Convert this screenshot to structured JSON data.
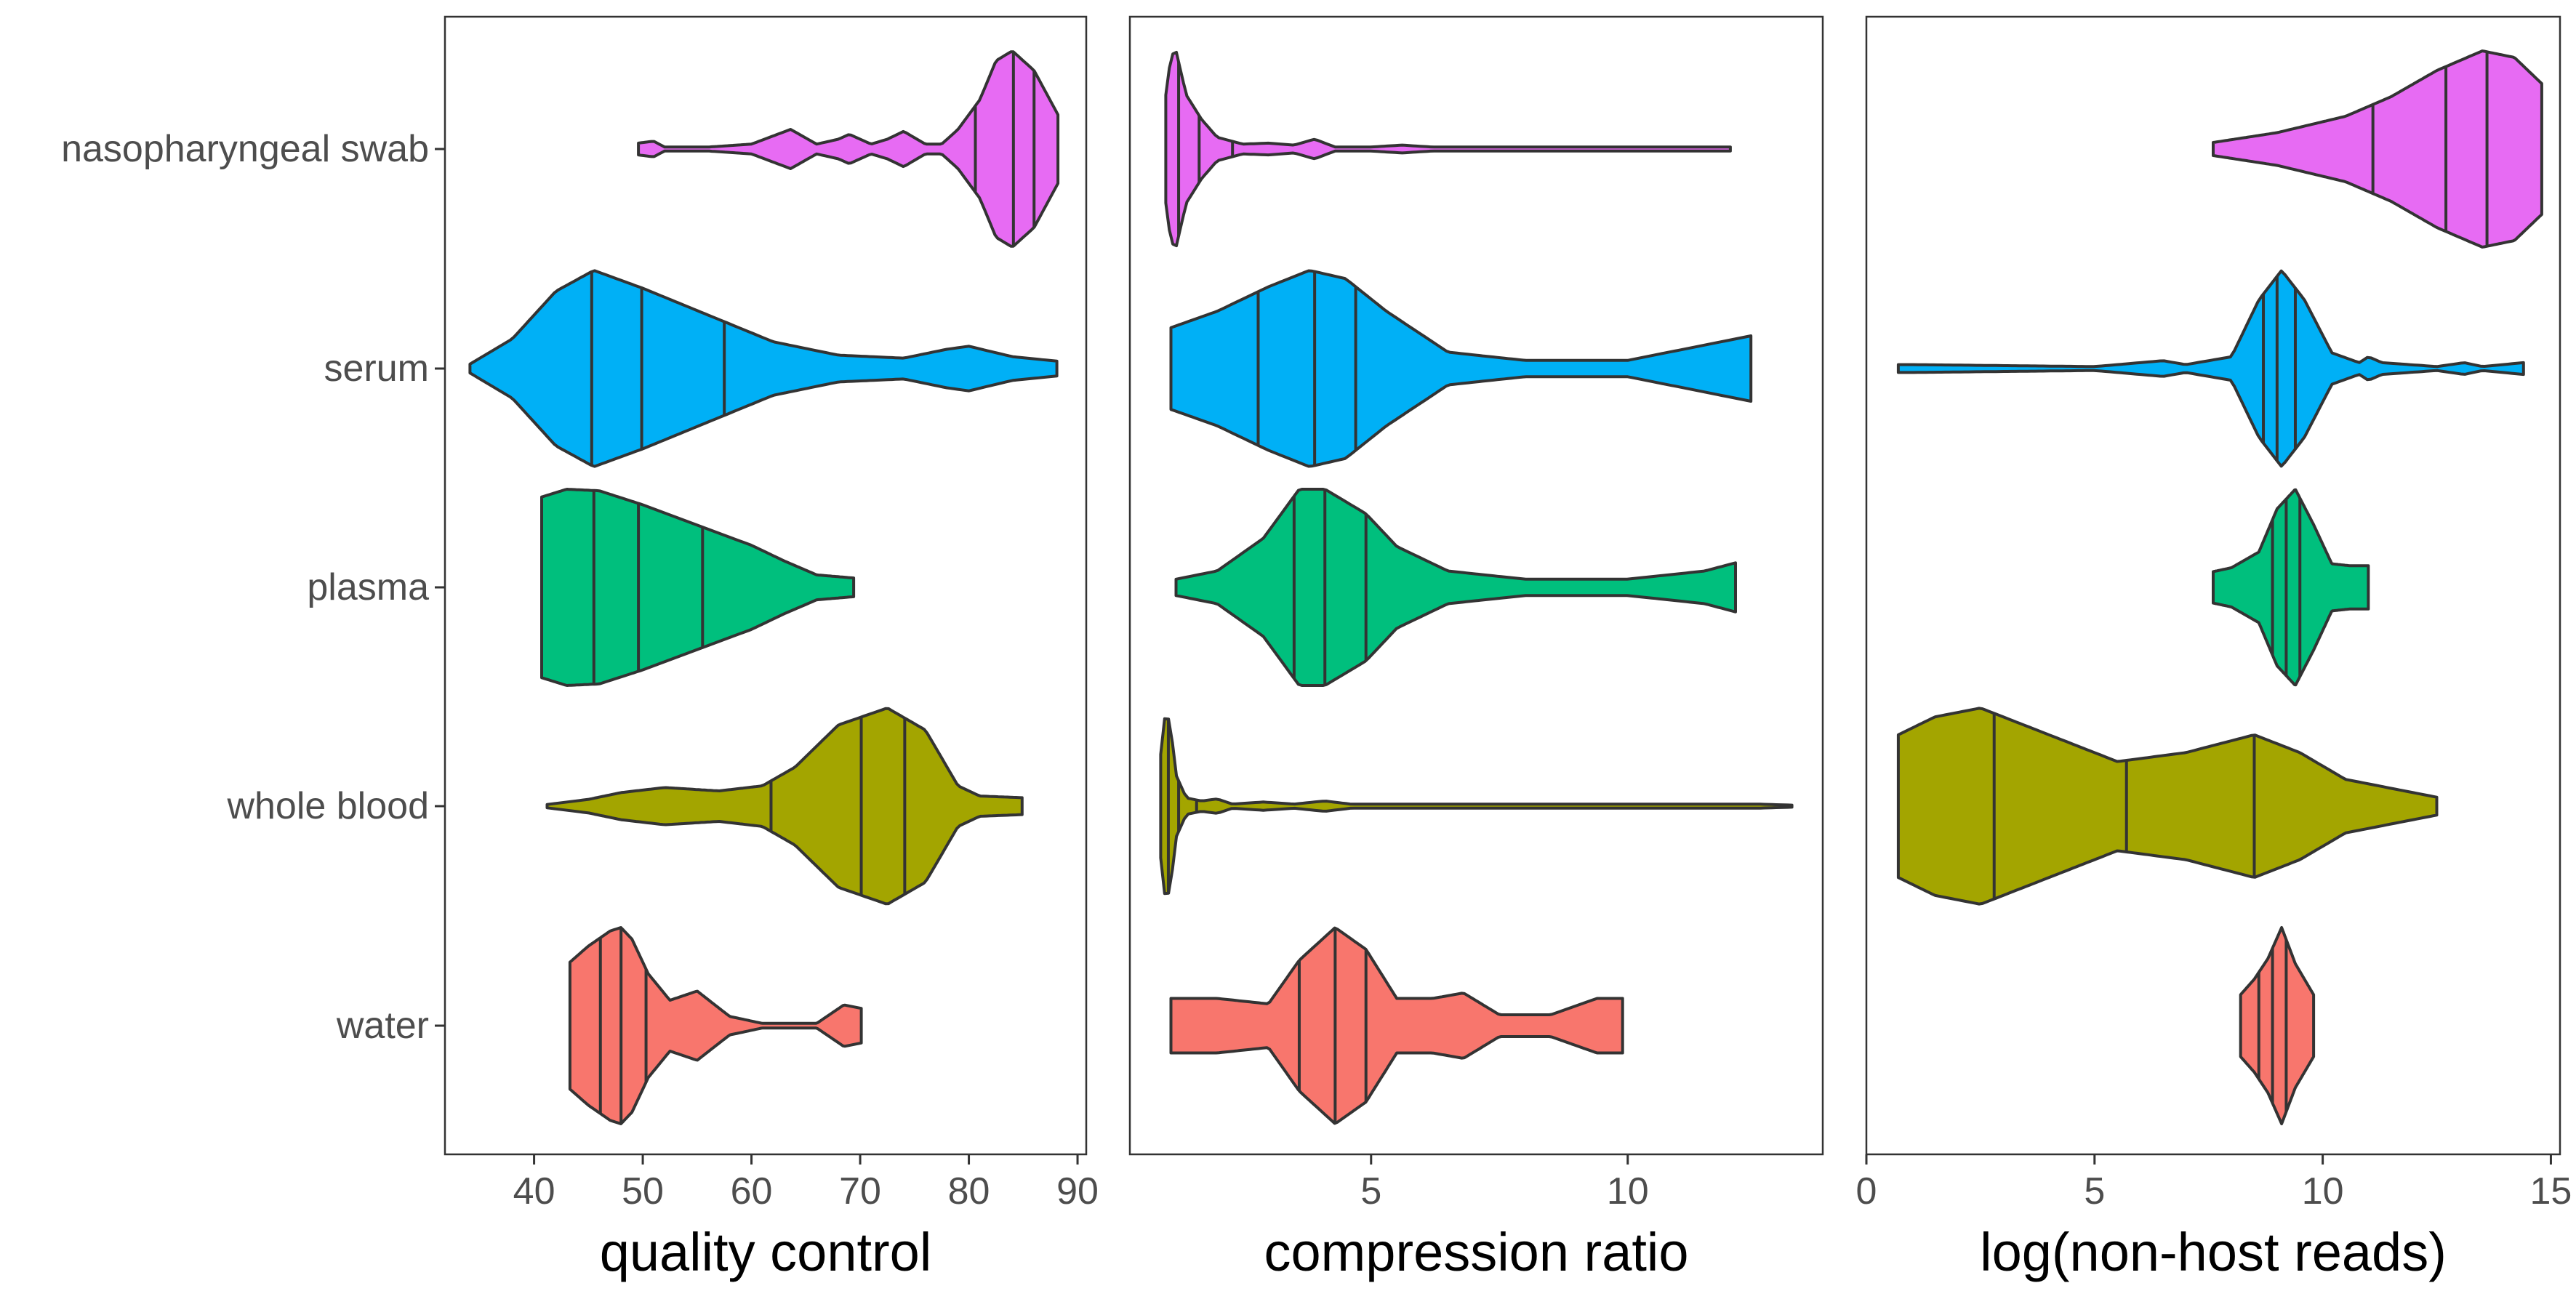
{
  "chart_data": {
    "type": "violin",
    "categories": [
      "nasopharyngeal swab",
      "serum",
      "plasma",
      "whole blood",
      "water"
    ],
    "colors": {
      "nasopharyngeal swab": "#E76BF3",
      "serum": "#00B0F6",
      "plasma": "#00BF7D",
      "whole blood": "#A3A500",
      "water": "#F8766D"
    },
    "legend": "none",
    "grid": false,
    "panels": [
      {
        "xlabel": "quality control",
        "xlim": [
          31.8,
          90.8
        ],
        "ticks": [
          40,
          50,
          60,
          70,
          80,
          90
        ],
        "violins": [
          {
            "category": "nasopharyngeal swab",
            "min": 49.6,
            "max": 88.2,
            "quantiles": [
              80.6,
              84.1,
              86.0
            ],
            "density": [
              [
                49.6,
                0.06
              ],
              [
                51,
                0.08
              ],
              [
                52,
                0.02
              ],
              [
                56,
                0.02
              ],
              [
                60,
                0.05
              ],
              [
                63.6,
                0.2
              ],
              [
                66,
                0.05
              ],
              [
                68,
                0.1
              ],
              [
                69,
                0.15
              ],
              [
                71,
                0.05
              ],
              [
                72.5,
                0.1
              ],
              [
                74,
                0.18
              ],
              [
                76,
                0.05
              ],
              [
                77.5,
                0.05
              ],
              [
                79,
                0.2
              ],
              [
                81,
                0.5
              ],
              [
                82.5,
                0.9
              ],
              [
                84,
                1.0
              ],
              [
                86,
                0.8
              ],
              [
                88.2,
                0.35
              ]
            ]
          },
          {
            "category": "serum",
            "min": 34.1,
            "max": 88.1,
            "quantiles": [
              45.3,
              49.9,
              57.5
            ],
            "density": [
              [
                34.1,
                0.03
              ],
              [
                38,
                0.2
              ],
              [
                42,
                0.52
              ],
              [
                45.5,
                0.66
              ],
              [
                50,
                0.54
              ],
              [
                56,
                0.36
              ],
              [
                62,
                0.18
              ],
              [
                68,
                0.09
              ],
              [
                74,
                0.07
              ],
              [
                78,
                0.13
              ],
              [
                80,
                0.15
              ],
              [
                84,
                0.08
              ],
              [
                88.1,
                0.05
              ]
            ]
          },
          {
            "category": "plasma",
            "min": 40.7,
            "max": 69.4,
            "quantiles": [
              45.5,
              49.6,
              55.5
            ],
            "density": [
              [
                40.7,
                0.58
              ],
              [
                43,
                0.63
              ],
              [
                46,
                0.62
              ],
              [
                50,
                0.53
              ],
              [
                55,
                0.4
              ],
              [
                60,
                0.27
              ],
              [
                63,
                0.17
              ],
              [
                66,
                0.08
              ],
              [
                69.4,
                0.06
              ]
            ]
          },
          {
            "category": "whole blood",
            "min": 41.2,
            "max": 84.9,
            "quantiles": [
              61.8,
              70.1,
              74.1
            ],
            "density": [
              [
                41.2,
                0.01
              ],
              [
                45,
                0.04
              ],
              [
                48,
                0.08
              ],
              [
                52,
                0.11
              ],
              [
                57,
                0.09
              ],
              [
                61,
                0.12
              ],
              [
                64,
                0.23
              ],
              [
                68,
                0.48
              ],
              [
                72.5,
                0.58
              ],
              [
                76,
                0.45
              ],
              [
                79,
                0.12
              ],
              [
                81,
                0.06
              ],
              [
                84.9,
                0.05
              ]
            ]
          },
          {
            "category": "water",
            "min": 43.3,
            "max": 70.1,
            "quantiles": [
              46.1,
              48.0,
              50.3
            ],
            "density": [
              [
                43.3,
                0.55
              ],
              [
                45,
                0.69
              ],
              [
                47,
                0.82
              ],
              [
                48,
                0.85
              ],
              [
                49,
                0.75
              ],
              [
                50.5,
                0.45
              ],
              [
                52.5,
                0.22
              ],
              [
                55,
                0.3
              ],
              [
                58,
                0.08
              ],
              [
                61,
                0.02
              ],
              [
                66,
                0.02
              ],
              [
                68.5,
                0.18
              ],
              [
                70.1,
                0.15
              ]
            ]
          }
        ]
      },
      {
        "xlabel": "compression ratio",
        "xlim": [
          0.3,
          13.8
        ],
        "ticks": [
          5,
          10
        ],
        "violins": [
          {
            "category": "nasopharyngeal swab",
            "min": 1.0,
            "max": 12.0,
            "quantiles": [
              1.25,
              1.65,
              2.3
            ],
            "density": [
              [
                1.0,
                0.55
              ],
              [
                1.1,
                0.95
              ],
              [
                1.2,
                1.0
              ],
              [
                1.4,
                0.55
              ],
              [
                1.7,
                0.3
              ],
              [
                2.0,
                0.12
              ],
              [
                2.5,
                0.05
              ],
              [
                3.0,
                0.06
              ],
              [
                3.5,
                0.04
              ],
              [
                3.9,
                0.1
              ],
              [
                4.3,
                0.02
              ],
              [
                5.0,
                0.02
              ],
              [
                5.6,
                0.04
              ],
              [
                6.2,
                0.02
              ],
              [
                12.0,
                0.02
              ]
            ]
          },
          {
            "category": "serum",
            "min": 1.1,
            "max": 12.4,
            "quantiles": [
              2.8,
              3.9,
              4.7
            ],
            "density": [
              [
                1.1,
                0.05
              ],
              [
                2.0,
                0.07
              ],
              [
                3.0,
                0.1
              ],
              [
                3.8,
                0.12
              ],
              [
                4.5,
                0.11
              ],
              [
                5.3,
                0.07
              ],
              [
                6.5,
                0.02
              ],
              [
                8.0,
                0.01
              ],
              [
                10.0,
                0.01
              ],
              [
                12.4,
                0.04
              ]
            ]
          },
          {
            "category": "plasma",
            "min": 1.2,
            "max": 12.1,
            "quantiles": [
              3.5,
              4.1,
              4.9
            ],
            "density": [
              [
                1.2,
                0.01
              ],
              [
                2.0,
                0.02
              ],
              [
                2.9,
                0.06
              ],
              [
                3.6,
                0.12
              ],
              [
                4.1,
                0.12
              ],
              [
                4.9,
                0.09
              ],
              [
                5.5,
                0.05
              ],
              [
                6.5,
                0.02
              ],
              [
                8.0,
                0.01
              ],
              [
                10.0,
                0.01
              ],
              [
                11.5,
                0.02
              ],
              [
                12.1,
                0.03
              ]
            ]
          },
          {
            "category": "whole blood",
            "min": 0.9,
            "max": 13.2,
            "quantiles": [
              1.05,
              1.25,
              1.6
            ],
            "density": [
              [
                0.9,
                0.5
              ],
              [
                1.0,
                0.95
              ],
              [
                1.1,
                0.75
              ],
              [
                1.2,
                0.3
              ],
              [
                1.4,
                0.08
              ],
              [
                1.7,
                0.05
              ],
              [
                2.0,
                0.07
              ],
              [
                2.3,
                0.02
              ],
              [
                2.9,
                0.04
              ],
              [
                3.5,
                0.02
              ],
              [
                4.1,
                0.05
              ],
              [
                4.6,
                0.02
              ],
              [
                6.6,
                0.02
              ],
              [
                10.3,
                0.02
              ],
              [
                11.2,
                0.02
              ],
              [
                11.9,
                0.02
              ],
              [
                12.5,
                0.02
              ],
              [
                13.2,
                0.01
              ]
            ]
          },
          {
            "category": "water",
            "min": 1.1,
            "max": 9.9,
            "quantiles": [
              3.6,
              4.3,
              4.9
            ],
            "density": [
              [
                1.1,
                0.05
              ],
              [
                2.0,
                0.05
              ],
              [
                3.0,
                0.04
              ],
              [
                3.6,
                0.12
              ],
              [
                4.3,
                0.18
              ],
              [
                4.9,
                0.14
              ],
              [
                5.5,
                0.05
              ],
              [
                6.2,
                0.05
              ],
              [
                6.8,
                0.06
              ],
              [
                7.5,
                0.02
              ],
              [
                8.5,
                0.02
              ],
              [
                9.4,
                0.05
              ],
              [
                9.9,
                0.05
              ]
            ]
          }
        ]
      },
      {
        "xlabel": "log(non-host reads)",
        "xlim": [
          0,
          15.2
        ],
        "ticks": [
          0,
          5,
          10,
          15
        ],
        "violins": [
          {
            "category": "nasopharyngeal swab",
            "min": 7.6,
            "max": 14.8,
            "quantiles": [
              11.1,
              12.7,
              13.6
            ],
            "density": [
              [
                7.6,
                0.02
              ],
              [
                9.0,
                0.05
              ],
              [
                10.5,
                0.1
              ],
              [
                11.5,
                0.16
              ],
              [
                12.5,
                0.24
              ],
              [
                13.5,
                0.3
              ],
              [
                14.2,
                0.28
              ],
              [
                14.8,
                0.2
              ]
            ]
          },
          {
            "category": "serum",
            "min": 0.7,
            "max": 14.4,
            "quantiles": [
              8.7,
              9.0,
              9.4
            ],
            "density": [
              [
                0.7,
                0.02
              ],
              [
                1.0,
                0.02
              ],
              [
                5.0,
                0.01
              ],
              [
                6.5,
                0.04
              ],
              [
                7.0,
                0.02
              ],
              [
                8.0,
                0.06
              ],
              [
                8.6,
                0.35
              ],
              [
                9.1,
                0.5
              ],
              [
                9.6,
                0.35
              ],
              [
                10.2,
                0.08
              ],
              [
                10.8,
                0.03
              ],
              [
                11.0,
                0.06
              ],
              [
                11.3,
                0.03
              ],
              [
                12.5,
                0.01
              ],
              [
                13.1,
                0.03
              ],
              [
                13.5,
                0.01
              ],
              [
                14.4,
                0.03
              ]
            ]
          },
          {
            "category": "plasma",
            "min": 7.6,
            "max": 11.0,
            "quantiles": [
              8.9,
              9.2,
              9.5
            ],
            "density": [
              [
                7.6,
                0.08
              ],
              [
                8.0,
                0.1
              ],
              [
                8.6,
                0.18
              ],
              [
                9.0,
                0.4
              ],
              [
                9.4,
                0.5
              ],
              [
                9.8,
                0.32
              ],
              [
                10.2,
                0.12
              ],
              [
                10.6,
                0.11
              ],
              [
                11.0,
                0.11
              ]
            ]
          },
          {
            "category": "whole blood",
            "min": 0.7,
            "max": 12.5,
            "quantiles": [
              2.8,
              5.7,
              8.5
            ],
            "density": [
              [
                0.7,
                0.04
              ],
              [
                1.5,
                0.05
              ],
              [
                2.5,
                0.055
              ],
              [
                4.0,
                0.04
              ],
              [
                5.5,
                0.025
              ],
              [
                7.0,
                0.03
              ],
              [
                8.5,
                0.04
              ],
              [
                9.5,
                0.03
              ],
              [
                10.5,
                0.015
              ],
              [
                12.5,
                0.005
              ]
            ]
          },
          {
            "category": "water",
            "min": 8.2,
            "max": 9.8,
            "quantiles": [
              8.6,
              8.9,
              9.2
            ],
            "density": [
              [
                8.2,
                0.3
              ],
              [
                8.5,
                0.45
              ],
              [
                8.8,
                0.65
              ],
              [
                9.1,
                0.95
              ],
              [
                9.4,
                0.6
              ],
              [
                9.8,
                0.3
              ]
            ]
          }
        ]
      }
    ]
  }
}
